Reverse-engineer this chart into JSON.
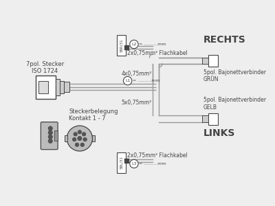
{
  "bg_color": "#eeeeee",
  "line_color": "#999999",
  "dark_color": "#444444",
  "text_color": "#444444",
  "labels": {
    "stecker": "7pol. Stecker\nISO 1724",
    "steckerbelegung": "Steckerbelegung\nKontakt 1 - 7",
    "L1": "L1",
    "L2": "L2",
    "L3": "L3",
    "dots": "= ..........mm",
    "cable_top": "2x0,75mm² Flachkabel",
    "cable_bottom": "2x0,75mm² Flachkabel",
    "cable_mid_top": "4x0,75mm²",
    "cable_mid_bot": "5x0,75mm²",
    "rechts": "RECHTS",
    "links": "LINKS",
    "baj_gruen": "5pol. Bajonettverbinder\nGRÜN",
    "baj_gelb": "5pol. Bajonettverbinder\nGELB",
    "label_58R": "58R/31",
    "label_58L": "58L/31"
  }
}
